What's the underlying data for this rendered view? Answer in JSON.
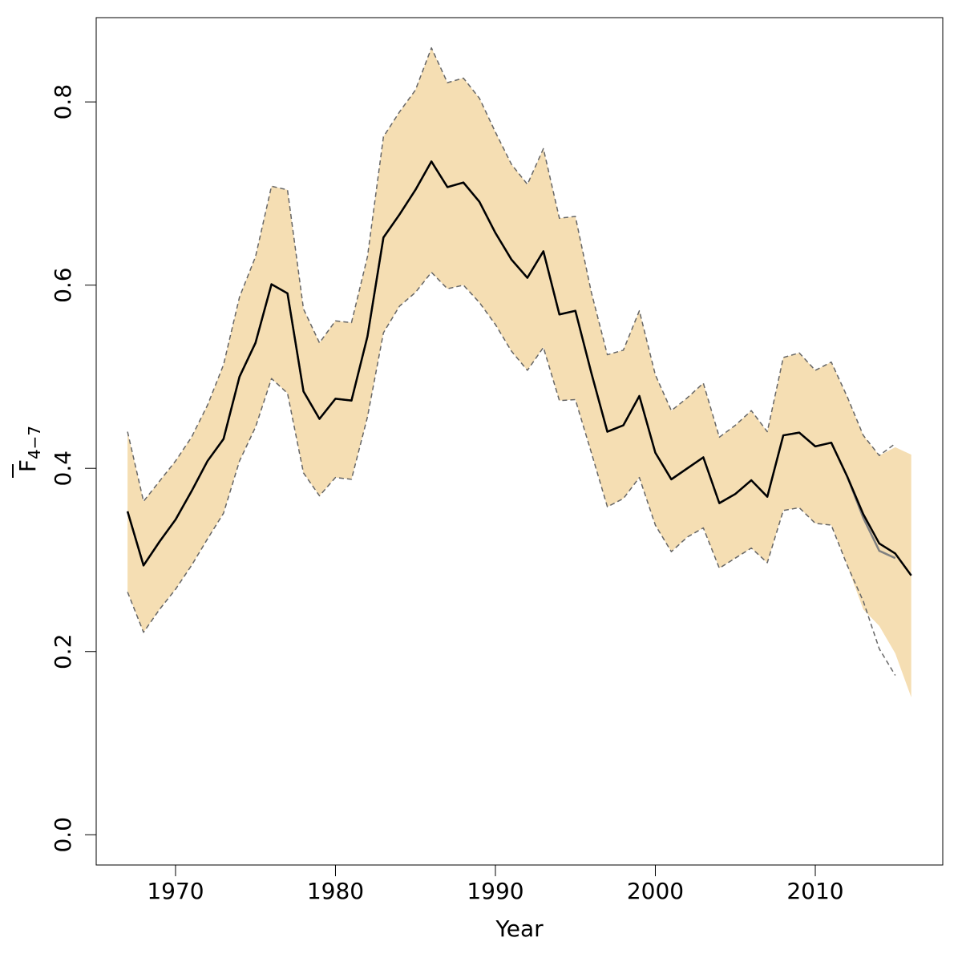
{
  "chart_data": {
    "type": "line",
    "xlabel": "Year",
    "ylabel": "F",
    "ylabel_subscript": "4−7",
    "xlim": [
      1965.04,
      2017.97
    ],
    "ylim": [
      -0.033,
      0.892
    ],
    "xticks": [
      1970,
      1980,
      1990,
      2000,
      2010
    ],
    "yticks": [
      {
        "value": 0,
        "label": "0.0"
      },
      0.2,
      0.4,
      0.6,
      0.8
    ],
    "x": [
      1967,
      1968,
      1969,
      1970,
      1971,
      1972,
      1973,
      1974,
      1975,
      1976,
      1977,
      1978,
      1979,
      1980,
      1981,
      1982,
      1983,
      1984,
      1985,
      1986,
      1987,
      1988,
      1989,
      1990,
      1991,
      1992,
      1993,
      1994,
      1995,
      1996,
      1997,
      1998,
      1999,
      2000,
      2001,
      2002,
      2003,
      2004,
      2005,
      2006,
      2007,
      2008,
      2009,
      2010,
      2011,
      2012,
      2013,
      2014,
      2015,
      2016
    ],
    "band": {
      "color": "#f5deb3",
      "upper": [
        0.44,
        0.364,
        0.386,
        0.408,
        0.434,
        0.469,
        0.513,
        0.587,
        0.631,
        0.708,
        0.704,
        0.574,
        0.537,
        0.561,
        0.559,
        0.631,
        0.762,
        0.789,
        0.813,
        0.859,
        0.821,
        0.826,
        0.804,
        0.767,
        0.732,
        0.71,
        0.749,
        0.673,
        0.675,
        0.592,
        0.524,
        0.529,
        0.572,
        0.502,
        0.463,
        0.477,
        0.493,
        0.434,
        0.447,
        0.463,
        0.44,
        0.521,
        0.526,
        0.507,
        0.516,
        0.478,
        0.436,
        0.414,
        0.423,
        0.415
      ],
      "lower": [
        0.265,
        0.221,
        0.246,
        0.268,
        0.294,
        0.323,
        0.351,
        0.408,
        0.445,
        0.498,
        0.482,
        0.395,
        0.37,
        0.39,
        0.388,
        0.456,
        0.548,
        0.577,
        0.592,
        0.614,
        0.596,
        0.6,
        0.581,
        0.557,
        0.528,
        0.507,
        0.532,
        0.474,
        0.475,
        0.417,
        0.358,
        0.367,
        0.39,
        0.338,
        0.309,
        0.325,
        0.335,
        0.291,
        0.302,
        0.313,
        0.297,
        0.354,
        0.357,
        0.34,
        0.338,
        0.294,
        0.246,
        0.228,
        0.198,
        0.15
      ]
    },
    "series": [
      {
        "color": "#666666",
        "dash": true,
        "values": [
          0.44,
          0.364,
          0.386,
          0.408,
          0.434,
          0.469,
          0.513,
          0.587,
          0.631,
          0.708,
          0.704,
          0.574,
          0.537,
          0.561,
          0.559,
          0.631,
          0.762,
          0.789,
          0.813,
          0.859,
          0.821,
          0.826,
          0.804,
          0.767,
          0.732,
          0.71,
          0.749,
          0.673,
          0.675,
          0.592,
          0.524,
          0.529,
          0.572,
          0.502,
          0.463,
          0.477,
          0.493,
          0.434,
          0.447,
          0.463,
          0.44,
          0.521,
          0.526,
          0.507,
          0.516,
          0.478,
          0.436,
          0.414,
          0.427,
          null
        ]
      },
      {
        "color": "#666666",
        "dash": true,
        "values": [
          0.265,
          0.221,
          0.246,
          0.268,
          0.294,
          0.323,
          0.351,
          0.408,
          0.445,
          0.498,
          0.482,
          0.395,
          0.37,
          0.39,
          0.388,
          0.456,
          0.548,
          0.577,
          0.592,
          0.614,
          0.596,
          0.6,
          0.581,
          0.557,
          0.528,
          0.507,
          0.532,
          0.474,
          0.475,
          0.417,
          0.358,
          0.367,
          0.39,
          0.338,
          0.309,
          0.325,
          0.335,
          0.291,
          0.302,
          0.313,
          0.297,
          0.354,
          0.357,
          0.34,
          0.338,
          0.294,
          0.255,
          0.203,
          0.174,
          null
        ]
      },
      {
        "color": "#808080",
        "width": 2.5,
        "values": [
          0.353,
          0.294,
          0.32,
          0.344,
          0.375,
          0.408,
          0.432,
          0.5,
          0.537,
          0.601,
          0.591,
          0.484,
          0.454,
          0.476,
          0.474,
          0.544,
          0.652,
          0.677,
          0.704,
          0.735,
          0.707,
          0.712,
          0.691,
          0.657,
          0.628,
          0.608,
          0.637,
          0.568,
          0.572,
          0.504,
          0.44,
          0.447,
          0.479,
          0.417,
          0.388,
          0.4,
          0.412,
          0.362,
          0.372,
          0.387,
          0.369,
          0.436,
          0.439,
          0.424,
          0.428,
          0.391,
          0.346,
          0.31,
          0.302,
          null
        ]
      },
      {
        "color": "#000000",
        "width": 2.5,
        "values": [
          0.353,
          0.294,
          0.32,
          0.344,
          0.375,
          0.408,
          0.432,
          0.5,
          0.537,
          0.601,
          0.591,
          0.484,
          0.454,
          0.476,
          0.474,
          0.544,
          0.652,
          0.677,
          0.704,
          0.735,
          0.707,
          0.712,
          0.691,
          0.657,
          0.628,
          0.608,
          0.637,
          0.568,
          0.572,
          0.504,
          0.44,
          0.447,
          0.479,
          0.417,
          0.388,
          0.4,
          0.412,
          0.362,
          0.372,
          0.387,
          0.369,
          0.436,
          0.439,
          0.424,
          0.428,
          0.391,
          0.35,
          0.318,
          0.307,
          0.283
        ]
      }
    ]
  }
}
